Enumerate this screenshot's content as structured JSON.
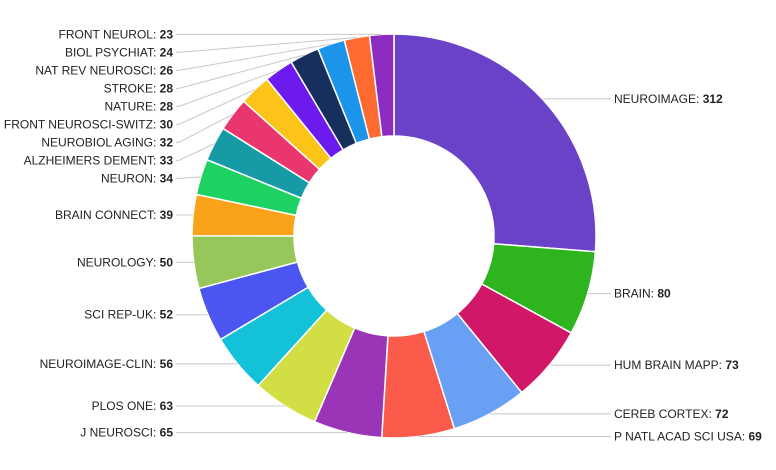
{
  "chart_data": {
    "type": "pie",
    "variant": "donut",
    "title": "",
    "legend": "none",
    "slices": [
      {
        "label": "NEUROIMAGE",
        "value": 312,
        "color": "#6a42c8",
        "side": "right"
      },
      {
        "label": "BRAIN",
        "value": 80,
        "color": "#2db41e",
        "side": "right"
      },
      {
        "label": "HUM BRAIN MAPP",
        "value": 73,
        "color": "#d11768",
        "side": "right"
      },
      {
        "label": "CEREB CORTEX",
        "value": 72,
        "color": "#6aa0f3",
        "side": "right"
      },
      {
        "label": "P NATL ACAD SCI USA",
        "value": 69,
        "color": "#fa5b4a",
        "side": "right"
      },
      {
        "label": "J NEUROSCI",
        "value": 65,
        "color": "#9a35b8",
        "side": "left"
      },
      {
        "label": "PLOS ONE",
        "value": 63,
        "color": "#d2df44",
        "side": "left"
      },
      {
        "label": "NEUROIMAGE-CLIN",
        "value": 56,
        "color": "#13c2d8",
        "side": "left"
      },
      {
        "label": "SCI REP-UK",
        "value": 52,
        "color": "#4a56ef",
        "side": "left"
      },
      {
        "label": "NEUROLOGY",
        "value": 50,
        "color": "#97c65a",
        "side": "left"
      },
      {
        "label": "BRAIN CONNECT",
        "value": 39,
        "color": "#fba21b",
        "side": "left"
      },
      {
        "label": "NEURON",
        "value": 34,
        "color": "#1dd162",
        "side": "left"
      },
      {
        "label": "ALZHEIMERS DEMENT",
        "value": 33,
        "color": "#169aa5",
        "side": "left"
      },
      {
        "label": "NEUROBIOL AGING",
        "value": 32,
        "color": "#ea366f",
        "side": "left"
      },
      {
        "label": "FRONT NEUROSCI-SWITZ",
        "value": 30,
        "color": "#fcc419",
        "side": "left"
      },
      {
        "label": "NATURE",
        "value": 28,
        "color": "#6d1aef",
        "side": "left"
      },
      {
        "label": "STROKE",
        "value": 28,
        "color": "#162f5c",
        "side": "left"
      },
      {
        "label": "NAT REV NEUROSCI",
        "value": 26,
        "color": "#1c94ea",
        "side": "left"
      },
      {
        "label": "BIOL PSYCHIAT",
        "value": 24,
        "color": "#ff6a30",
        "side": "left"
      },
      {
        "label": "FRONT NEUROL",
        "value": 23,
        "color": "#8c2cc0",
        "side": "left"
      }
    ]
  }
}
